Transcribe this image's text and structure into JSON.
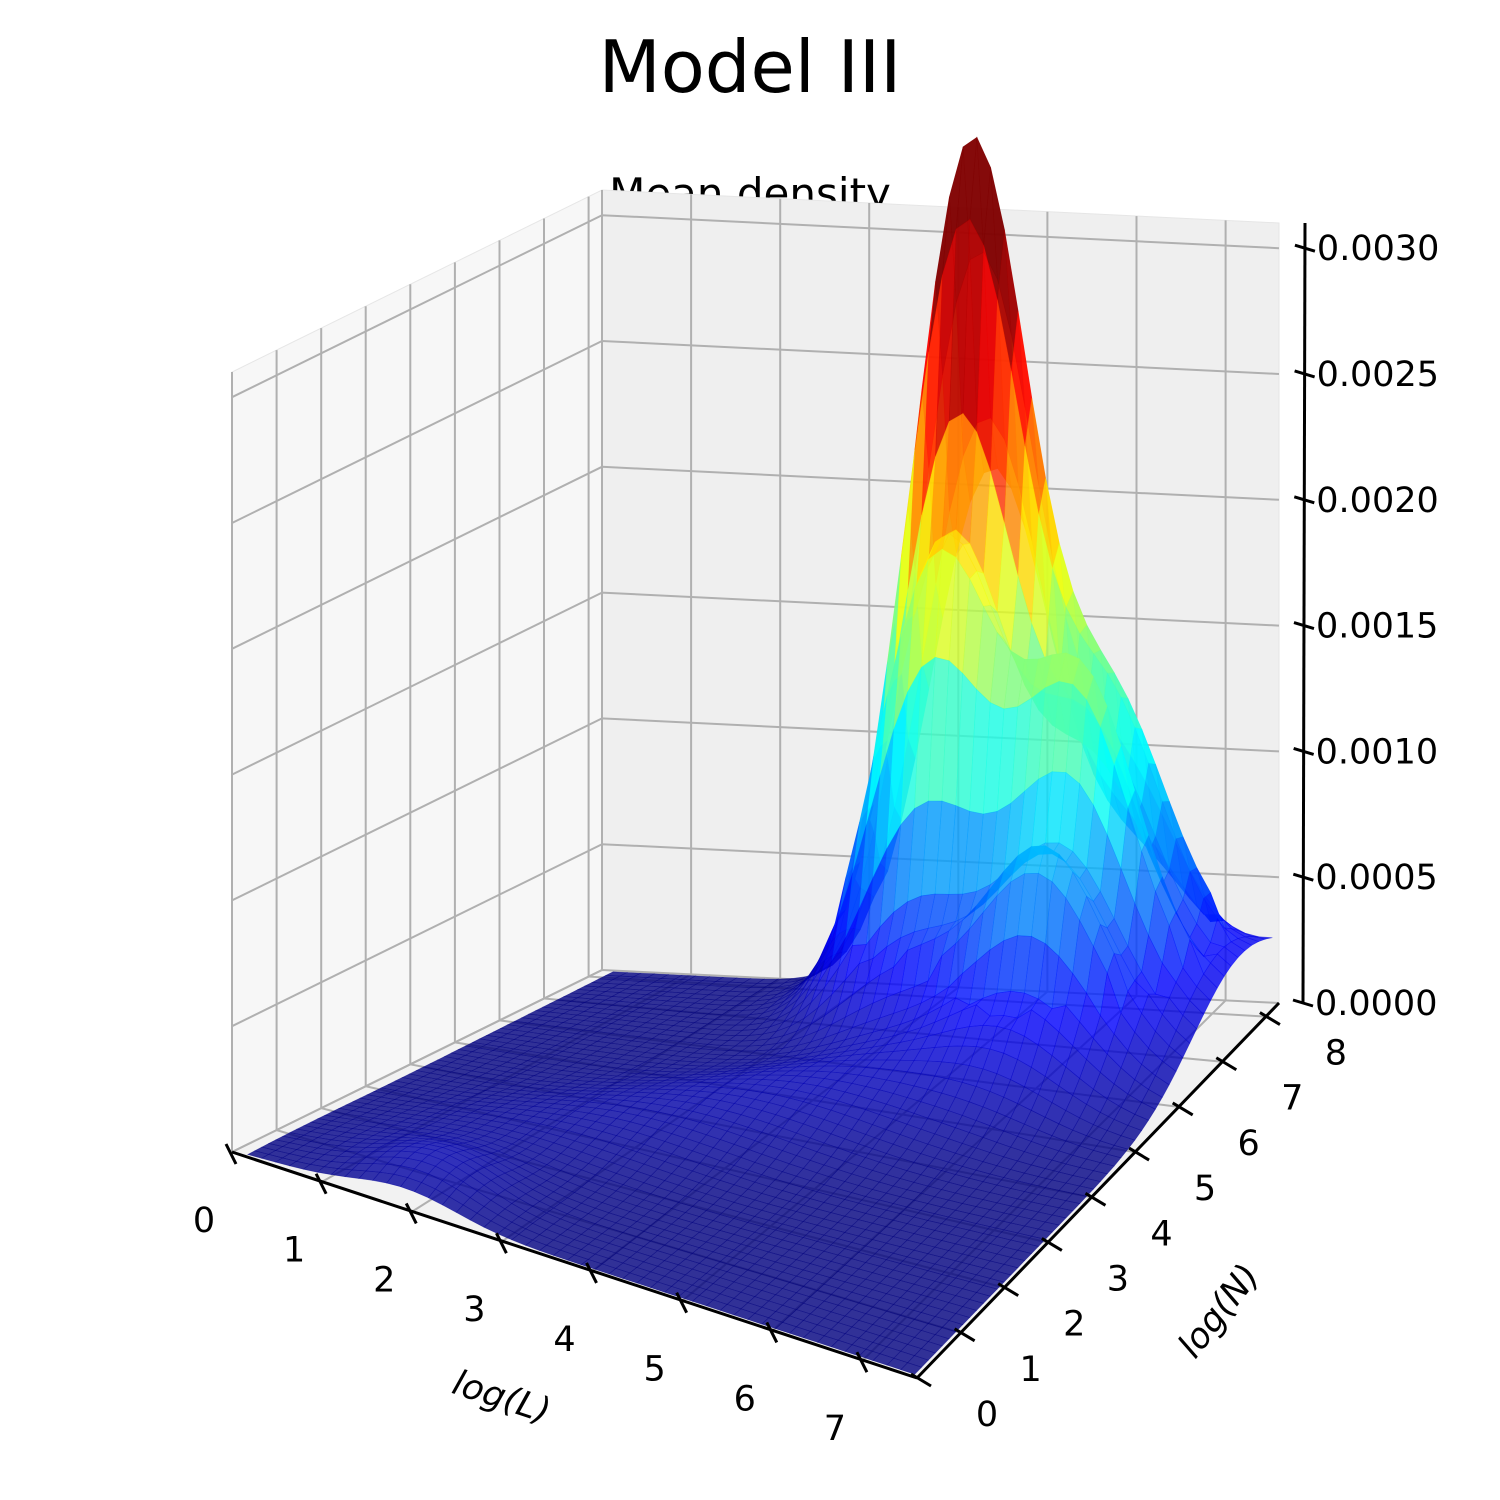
{
  "chart_data": {
    "type": "surface3d",
    "title": "Model III",
    "subtitle": "Mean density",
    "xlabel": "log(L)",
    "ylabel": "log(N)",
    "zlabel": "",
    "xlim": [
      0,
      7.6
    ],
    "ylim": [
      0,
      8.3
    ],
    "zlim": [
      0,
      0.0031
    ],
    "x_ticks": [
      "0",
      "1",
      "2",
      "3",
      "4",
      "5",
      "6",
      "7"
    ],
    "y_ticks": [
      "0",
      "1",
      "2",
      "3",
      "4",
      "5",
      "6",
      "7",
      "8"
    ],
    "z_ticks": [
      "0.0000",
      "0.0005",
      "0.0010",
      "0.0015",
      "0.0020",
      "0.0025",
      "0.0030"
    ],
    "z_tick_values": [
      0,
      0.0005,
      0.001,
      0.0015,
      0.002,
      0.0025,
      0.003
    ],
    "grid": true,
    "colormap": "jet",
    "surface_alpha": 0.8,
    "surface_peak": {
      "x": 4.4,
      "y": 7.8,
      "z": 0.0029
    },
    "surface_secondary": {
      "x": 6.0,
      "y": 7.2,
      "z": 0.0011
    },
    "colors": {
      "pane_left": "#f7f7f7",
      "pane_right": "#efefef",
      "pane_floor": "#f2f2f2",
      "grid": "#b0b0b0"
    }
  }
}
